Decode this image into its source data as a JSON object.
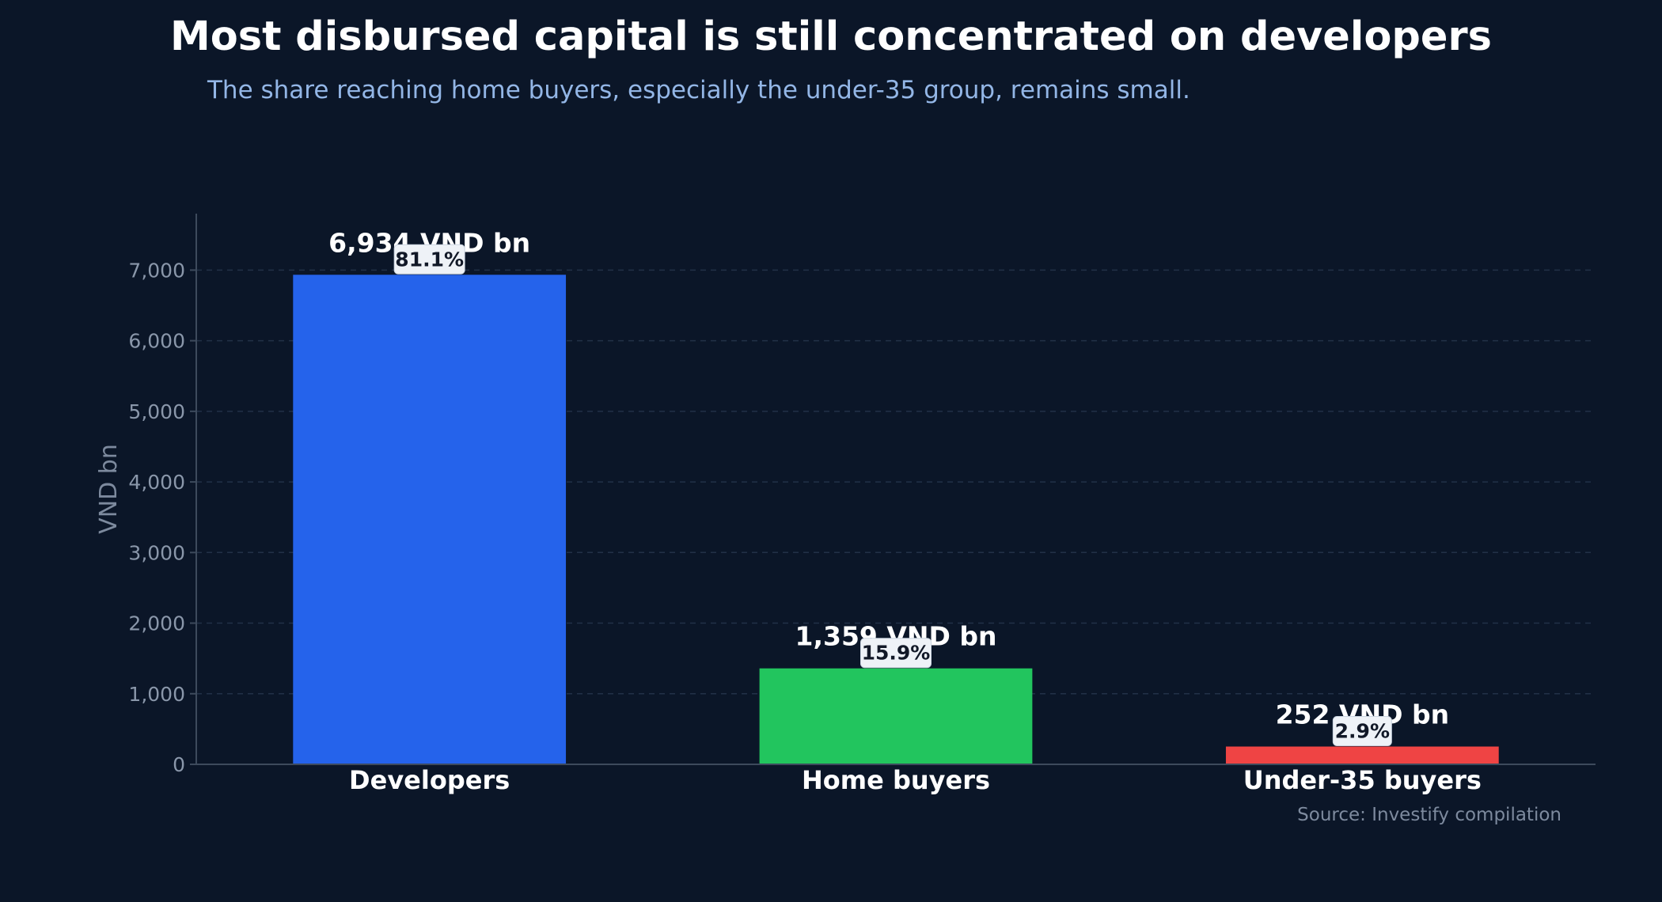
{
  "chart_data": {
    "type": "bar",
    "title": "Most disbursed capital is still concentrated on developers",
    "subtitle": "The share reaching home buyers, especially the under-35 group, remains small.",
    "ylabel": "VND bn",
    "xlabel": "",
    "ylim": [
      0,
      7800
    ],
    "yticks": [
      0,
      1000,
      2000,
      3000,
      4000,
      5000,
      6000,
      7000
    ],
    "ytick_labels": [
      "0",
      "1,000",
      "2,000",
      "3,000",
      "4,000",
      "5,000",
      "6,000",
      "7,000"
    ],
    "grid": true,
    "categories": [
      "Developers",
      "Home buyers",
      "Under-35 buyers"
    ],
    "values": [
      6934,
      1359,
      252
    ],
    "value_labels": [
      "6,934 VND bn",
      "1,359 VND bn",
      "252 VND bn"
    ],
    "share_labels": [
      "81.1%",
      "15.9%",
      "2.9%"
    ],
    "colors": [
      "#2563eb",
      "#22c55e",
      "#ef4444"
    ],
    "source": "Source: Investify compilation"
  }
}
